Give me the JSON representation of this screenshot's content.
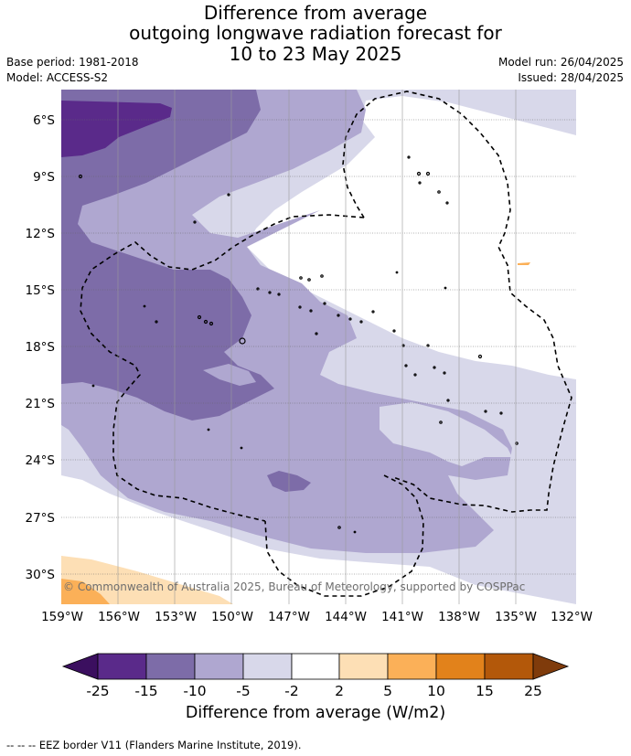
{
  "title": {
    "line1": "Difference from average",
    "line2": "outgoing longwave radiation forecast for",
    "line3": "10 to 23 May 2025"
  },
  "meta": {
    "base_period": "Base period: 1981-2018",
    "model": "Model: ACCESS-S2",
    "model_run": "Model run: 26/04/2025",
    "issued": "Issued: 28/04/2025"
  },
  "map": {
    "lat_ticks": [
      "6°S",
      "9°S",
      "12°S",
      "15°S",
      "18°S",
      "21°S",
      "24°S",
      "27°S",
      "30°S"
    ],
    "lon_ticks": [
      "159°W",
      "156°W",
      "153°W",
      "150°W",
      "147°W",
      "144°W",
      "141°W",
      "138°W",
      "135°W",
      "132°W"
    ],
    "copyright": "© Commonwealth of Australia 2025, Bureau of Meteorology, supported by COSPPac",
    "colors": {
      "lt_-15": "#5a2a8a",
      "-15_-10": "#7d6ca8",
      "-10_-5": "#afa7d0",
      "-5_-2": "#d8d8ea",
      "-2_2": "#ffffff",
      "2_5": "#fddfb5",
      "5_10": "#fbb058"
    }
  },
  "colorbar": {
    "ticks": [
      "-25",
      "-15",
      "-10",
      "-5",
      "-2",
      "2",
      "5",
      "10",
      "15",
      "25"
    ],
    "colors": [
      "#3b0f5f",
      "#5a2a8a",
      "#7d6ca8",
      "#afa7d0",
      "#d8d8ea",
      "#ffffff",
      "#fddfb5",
      "#fbb058",
      "#e2821b",
      "#b3580a",
      "#7f3b0b"
    ],
    "label": "Difference from average (W/m2)"
  },
  "footer": "--  --  -- EEZ border V11 (Flanders Marine Institute, 2019)."
}
